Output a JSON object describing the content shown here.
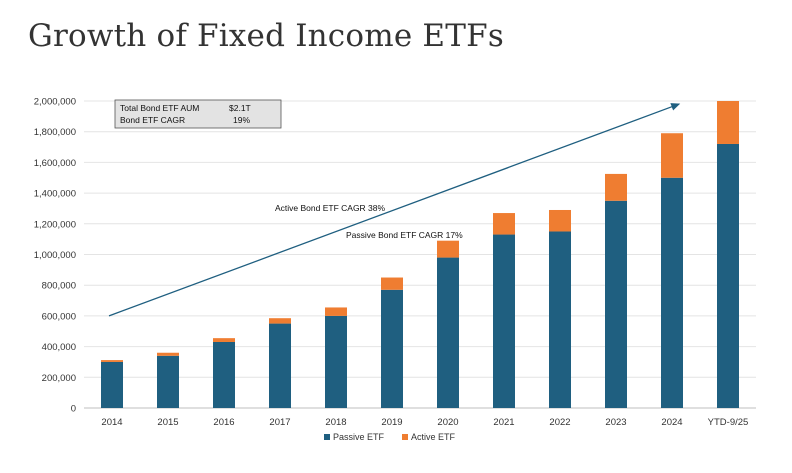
{
  "page": {
    "title": "Growth of Fixed Income ETFs"
  },
  "chart_data": {
    "type": "bar",
    "stacked": true,
    "title": "Growth of Fixed Income ETFs",
    "xlabel": "",
    "ylabel": "",
    "ylim": [
      0,
      2000000
    ],
    "yticks": [
      0,
      200000,
      400000,
      600000,
      800000,
      1000000,
      1200000,
      1400000,
      1600000,
      1800000,
      2000000
    ],
    "ytick_labels": [
      "0",
      "200,000",
      "400,000",
      "600,000",
      "800,000",
      "1,000,000",
      "1,200,000",
      "1,400,000",
      "1,600,000",
      "1,800,000",
      "2,000,000"
    ],
    "grid": true,
    "categories": [
      "2014",
      "2015",
      "2016",
      "2017",
      "2018",
      "2019",
      "2020",
      "2021",
      "2022",
      "2023",
      "2024",
      "YTD-9/25"
    ],
    "series": [
      {
        "name": "Passive ETF",
        "color": "#1f5f80",
        "values": [
          300000,
          340000,
          430000,
          550000,
          600000,
          770000,
          980000,
          1130000,
          1150000,
          1350000,
          1500000,
          1720000
        ]
      },
      {
        "name": "Active ETF",
        "color": "#ef7d31",
        "values": [
          12000,
          20000,
          25000,
          35000,
          55000,
          80000,
          110000,
          140000,
          140000,
          175000,
          290000,
          280000
        ]
      }
    ],
    "legend": {
      "position": "bottom"
    },
    "summary_box": {
      "rows": [
        {
          "label": "Total Bond ETF AUM",
          "value": "$2.1T"
        },
        {
          "label": "Bond ETF CAGR",
          "value": "19%"
        }
      ]
    },
    "annotations": {
      "active_cagr": "Active Bond ETF CAGR  38%",
      "passive_cagr": "Passive Bond ETF CAGR 17%",
      "trend_arrow": {
        "from_category": "2014",
        "from_value": 600000,
        "to_category": "2024",
        "to_value": 1980000
      }
    }
  }
}
